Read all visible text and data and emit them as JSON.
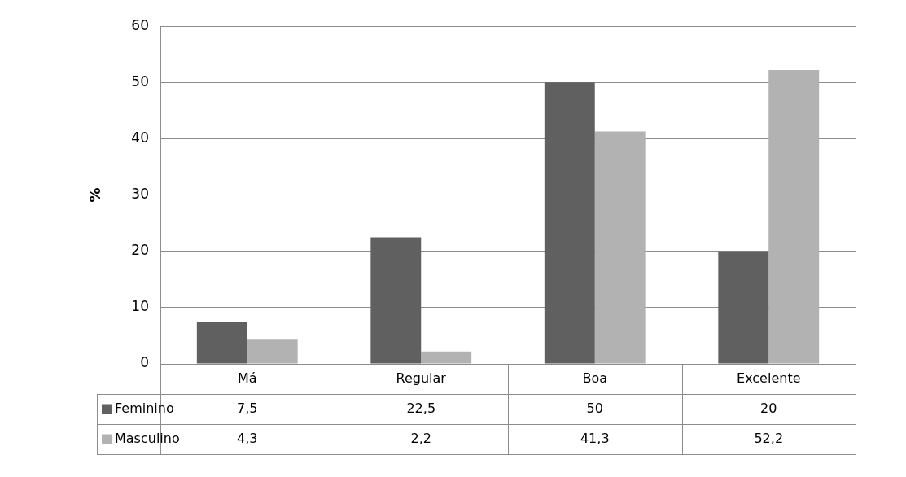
{
  "chart_data": {
    "type": "bar",
    "ylabel": "%",
    "categories": [
      "Má",
      "Regular",
      "Boa",
      "Excelente"
    ],
    "series": [
      {
        "name": "Feminino",
        "color": "#606060",
        "values": [
          7.5,
          22.5,
          50,
          20
        ],
        "value_labels": [
          "7,5",
          "22,5",
          "50",
          "20"
        ]
      },
      {
        "name": "Masculino",
        "color": "#b2b2b2",
        "values": [
          4.3,
          2.2,
          41.3,
          52.2
        ],
        "value_labels": [
          "4,3",
          "2,2",
          "41,3",
          "52,2"
        ]
      }
    ],
    "ylim": [
      0,
      60
    ],
    "yticks": [
      0,
      10,
      20,
      30,
      40,
      50,
      60
    ],
    "grid": "y",
    "legend": "bottom"
  }
}
